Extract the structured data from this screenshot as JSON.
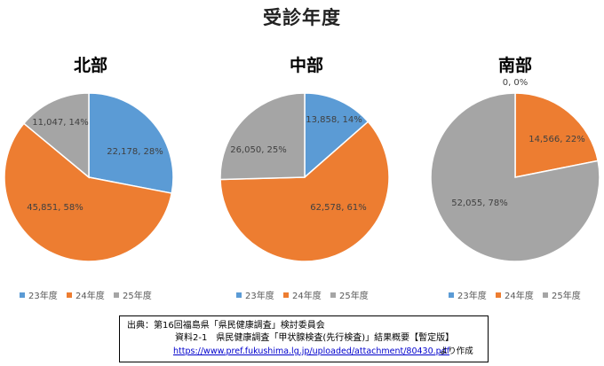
{
  "main_title": "受診年度",
  "chart_data": [
    {
      "type": "pie",
      "title": "北部",
      "categories": [
        "23年度",
        "24年度",
        "25年度"
      ],
      "values": [
        22178,
        45851,
        11047
      ],
      "labels": [
        "22,178, 28%",
        "45,851, 58%",
        "11,047, 14%"
      ],
      "colors": [
        "#5B9BD5",
        "#ED7D31",
        "#A5A5A5"
      ]
    },
    {
      "type": "pie",
      "title": "中部",
      "categories": [
        "23年度",
        "24年度",
        "25年度"
      ],
      "values": [
        13858,
        62578,
        26050
      ],
      "labels": [
        "13,858, 14%",
        "62,578, 61%",
        "26,050, 25%"
      ],
      "colors": [
        "#5B9BD5",
        "#ED7D31",
        "#A5A5A5"
      ]
    },
    {
      "type": "pie",
      "title": "南部",
      "categories": [
        "23年度",
        "24年度",
        "25年度"
      ],
      "values": [
        0,
        14566,
        52055
      ],
      "labels": [
        "0, 0%",
        "14,566, 22%",
        "52,055, 78%"
      ],
      "colors": [
        "#5B9BD5",
        "#ED7D31",
        "#A5A5A5"
      ]
    }
  ],
  "source": {
    "line1": "出典：第16回福島県「県民健康調査」検討委員会",
    "line2": "資料2-1　県民健康調査「甲状腺検査(先行検査)」結果概要【暫定版】",
    "url": "https://www.pref.fukushima.lg.jp/uploaded/attachment/80430.pdf",
    "suffix": "より作成"
  }
}
